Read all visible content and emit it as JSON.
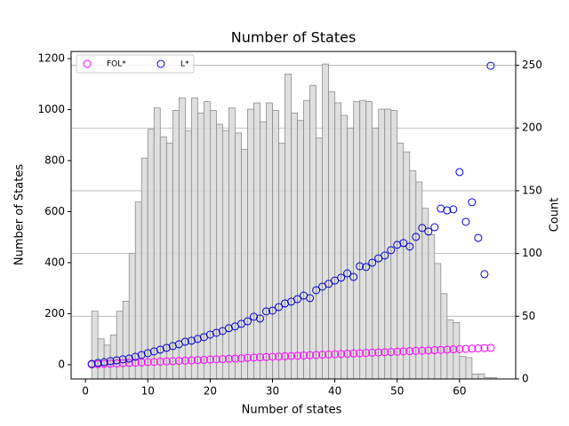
{
  "chart_data": {
    "type": "scatter",
    "title": "Number of States",
    "x_label": "Number of states",
    "y_label": "Number of States",
    "y2_label": "Count",
    "xlim": [
      -2.3,
      69
    ],
    "xticks": [
      0,
      10,
      20,
      30,
      40,
      50,
      60
    ],
    "ylim": [
      -56,
      1228
    ],
    "yticks": [
      0,
      200,
      400,
      600,
      800,
      1000,
      1200
    ],
    "y2lim": [
      0,
      261
    ],
    "y2ticks": [
      0,
      50,
      100,
      150,
      200,
      250
    ],
    "grid_axis": "y2",
    "legend": "upper left",
    "x": [
      1,
      2,
      3,
      4,
      5,
      6,
      7,
      8,
      9,
      10,
      11,
      12,
      13,
      14,
      15,
      16,
      17,
      18,
      19,
      20,
      21,
      22,
      23,
      24,
      25,
      26,
      27,
      28,
      29,
      30,
      31,
      32,
      33,
      34,
      35,
      36,
      37,
      38,
      39,
      40,
      41,
      42,
      43,
      44,
      45,
      46,
      47,
      48,
      49,
      50,
      51,
      52,
      53,
      54,
      55,
      56,
      57,
      58,
      59,
      60,
      61,
      62,
      63,
      64,
      65
    ],
    "series": [
      {
        "name": "FOL*",
        "color": "#ff00ff",
        "values": [
          1,
          2,
          3,
          4,
          5,
          6,
          7,
          8,
          9,
          10,
          11,
          12,
          13,
          14,
          15,
          16,
          17,
          18,
          19,
          20,
          21,
          22,
          23,
          24,
          25,
          27,
          28,
          29,
          30,
          31,
          32,
          33,
          34,
          35,
          36,
          37,
          38,
          39,
          40,
          41,
          42,
          43,
          44,
          45,
          46,
          47,
          48,
          49,
          50,
          51,
          52,
          53,
          54,
          55,
          56,
          57,
          58,
          59,
          60,
          61,
          62,
          63,
          64,
          65,
          66
        ]
      },
      {
        "name": "L*",
        "color": "#0000cc",
        "values": [
          3,
          7,
          10,
          14,
          17,
          21,
          24,
          31,
          38,
          45,
          52,
          59,
          66,
          73,
          80,
          90,
          94,
          101,
          108,
          118,
          125,
          132,
          143,
          150,
          160,
          170,
          188,
          181,
          209,
          212,
          226,
          240,
          247,
          257,
          271,
          261,
          292,
          306,
          317,
          330,
          341,
          358,
          344,
          386,
          383,
          400,
          417,
          428,
          449,
          470,
          477,
          463,
          501,
          536,
          522,
          539,
          612,
          605,
          609,
          755,
          560,
          637,
          497,
          355,
          1172
        ]
      }
    ],
    "histogram": {
      "type": "histogram",
      "axis": "y2",
      "color": "#d9d9d9",
      "edgecolor": "#8c8c8c",
      "bins": [
        1,
        2,
        3,
        4,
        5,
        6,
        7,
        8,
        9,
        10,
        11,
        12,
        13,
        14,
        15,
        16,
        17,
        18,
        19,
        20,
        21,
        22,
        23,
        24,
        25,
        26,
        27,
        28,
        29,
        30,
        31,
        32,
        33,
        34,
        35,
        36,
        37,
        38,
        39,
        40,
        41,
        42,
        43,
        44,
        45,
        46,
        47,
        48,
        49,
        50,
        51,
        52,
        53,
        54,
        55,
        56,
        57,
        58,
        59,
        60,
        61,
        62,
        63,
        64,
        65,
        66
      ],
      "counts": [
        54,
        32,
        27,
        35,
        54,
        62,
        100,
        141,
        176,
        199,
        216,
        193,
        188,
        214,
        224,
        198,
        224,
        212,
        221,
        214,
        203,
        198,
        216,
        196,
        183,
        215,
        220,
        205,
        220,
        214,
        188,
        243,
        212,
        206,
        222,
        234,
        192,
        251,
        229,
        220,
        210,
        200,
        221,
        222,
        221,
        200,
        215,
        215,
        214,
        188,
        181,
        166,
        157,
        136,
        115,
        92,
        68,
        47,
        45,
        18,
        17,
        4,
        4,
        1,
        1
      ]
    }
  }
}
